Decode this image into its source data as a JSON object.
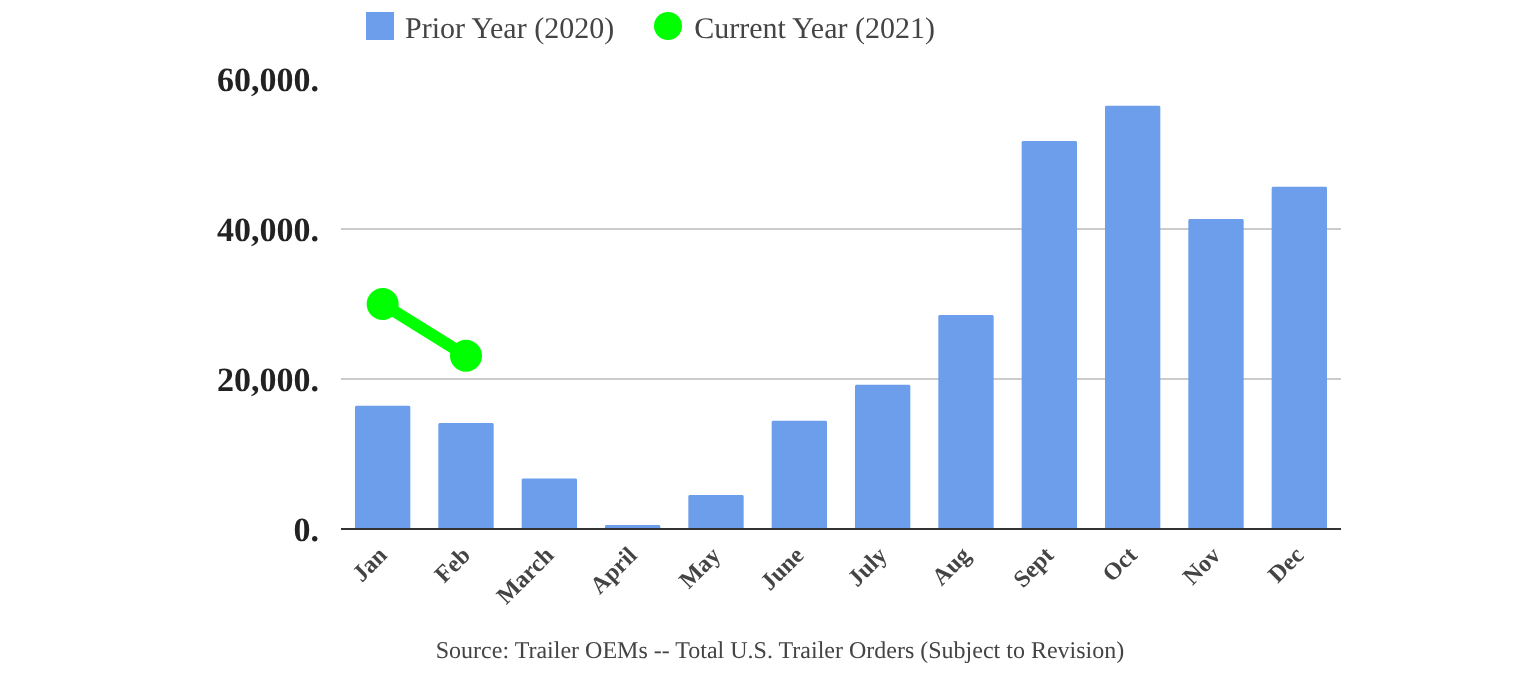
{
  "chart_data": {
    "type": "bar",
    "categories": [
      "Jan",
      "Feb",
      "March",
      "April",
      "May",
      "June",
      "July",
      "Aug",
      "Sept",
      "Oct",
      "Nov",
      "Dec"
    ],
    "series": [
      {
        "name": "Prior Year (2020)",
        "color": "#6d9eeb",
        "values": [
          16300,
          14000,
          6600,
          400,
          4400,
          14300,
          19100,
          28400,
          51600,
          56300,
          41200,
          45500
        ]
      },
      {
        "name": "Current Year (2021)",
        "color": "#00ff00",
        "type": "line",
        "values": [
          30000,
          23100,
          null,
          null,
          null,
          null,
          null,
          null,
          null,
          null,
          null,
          null
        ]
      }
    ],
    "ylim": [
      0,
      60000
    ],
    "yticks": [
      {
        "value": 0,
        "label": "0."
      },
      {
        "value": 20000,
        "label": "20,000."
      },
      {
        "value": 40000,
        "label": "40,000."
      },
      {
        "value": 60000,
        "label": "60,000."
      }
    ],
    "grid": "y",
    "legend": "top",
    "marker": "circle",
    "annotations": [
      "Source: Trailer OEMs -- Total U.S. Trailer Orders (Subject to Revision)"
    ]
  }
}
